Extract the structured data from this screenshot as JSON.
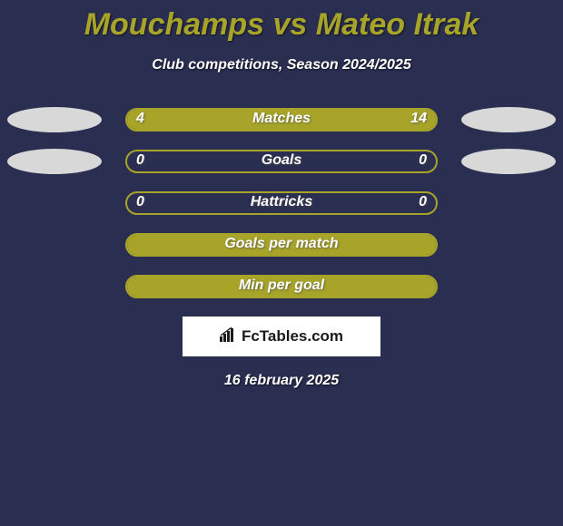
{
  "title": "Mouchamps vs Mateo Itrak",
  "subtitle": "Club competitions, Season 2024/2025",
  "date": "16 february 2025",
  "brand": "FcTables.com",
  "colors": {
    "background": "#2a2e50",
    "accent": "#a7a429",
    "oval_light": "#d8d8d8",
    "white": "#ffffff"
  },
  "rows": [
    {
      "label": "Matches",
      "left_value": "4",
      "right_value": "14",
      "left_pct": 22,
      "right_pct": 78,
      "show_ovals": true,
      "left_oval_color": "#d8d8d8",
      "right_oval_color": "#d8d8d8",
      "fill_color": "#a7a429",
      "border_color": "#a7a429"
    },
    {
      "label": "Goals",
      "left_value": "0",
      "right_value": "0",
      "left_pct": 0,
      "right_pct": 0,
      "show_ovals": true,
      "left_oval_color": "#d8d8d8",
      "right_oval_color": "#d8d8d8",
      "fill_color": "#a7a429",
      "border_color": "#a7a429"
    },
    {
      "label": "Hattricks",
      "left_value": "0",
      "right_value": "0",
      "left_pct": 0,
      "right_pct": 0,
      "show_ovals": false,
      "fill_color": "#a7a429",
      "border_color": "#a7a429"
    },
    {
      "label": "Goals per match",
      "left_value": "",
      "right_value": "",
      "left_pct": 100,
      "right_pct": 0,
      "show_ovals": false,
      "fill_color": "#a7a429",
      "border_color": "#a7a429"
    },
    {
      "label": "Min per goal",
      "left_value": "",
      "right_value": "",
      "left_pct": 100,
      "right_pct": 0,
      "show_ovals": false,
      "fill_color": "#a7a429",
      "border_color": "#a7a429"
    }
  ]
}
